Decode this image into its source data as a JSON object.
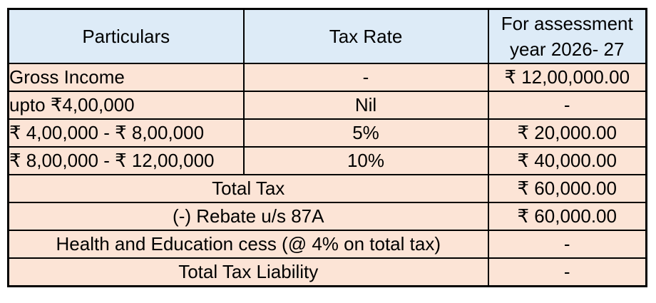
{
  "colors": {
    "header_bg": "#DDEBF7",
    "row_bg": "#FCE4D6",
    "border": "#000000",
    "page_bg": "#FFFFFF"
  },
  "header": {
    "particulars": "Particulars",
    "tax_rate": "Tax Rate",
    "assessment_line1": "For assessment",
    "assessment_line2": "year 2026- 27"
  },
  "rows": [
    {
      "particulars": "Gross Income",
      "tax_rate": "-",
      "amount": "₹ 12,00,000.00"
    },
    {
      "particulars": "upto ₹4,00,000",
      "tax_rate": "Nil",
      "amount": "-"
    },
    {
      "particulars": "₹ 4,00,000 - ₹ 8,00,000",
      "tax_rate": "5%",
      "amount": "₹ 20,000.00"
    },
    {
      "particulars": "₹ 8,00,000 - ₹ 12,00,000",
      "tax_rate": "10%",
      "amount": "₹ 40,000.00"
    }
  ],
  "summary_rows": [
    {
      "label": "Total Tax",
      "amount": "₹ 60,000.00"
    },
    {
      "label": "(-) Rebate u/s 87A",
      "amount": "₹ 60,000.00"
    },
    {
      "label": "Health and Education cess (@ 4% on total tax)",
      "amount": "-"
    },
    {
      "label": "Total Tax Liability",
      "amount": "-"
    }
  ]
}
